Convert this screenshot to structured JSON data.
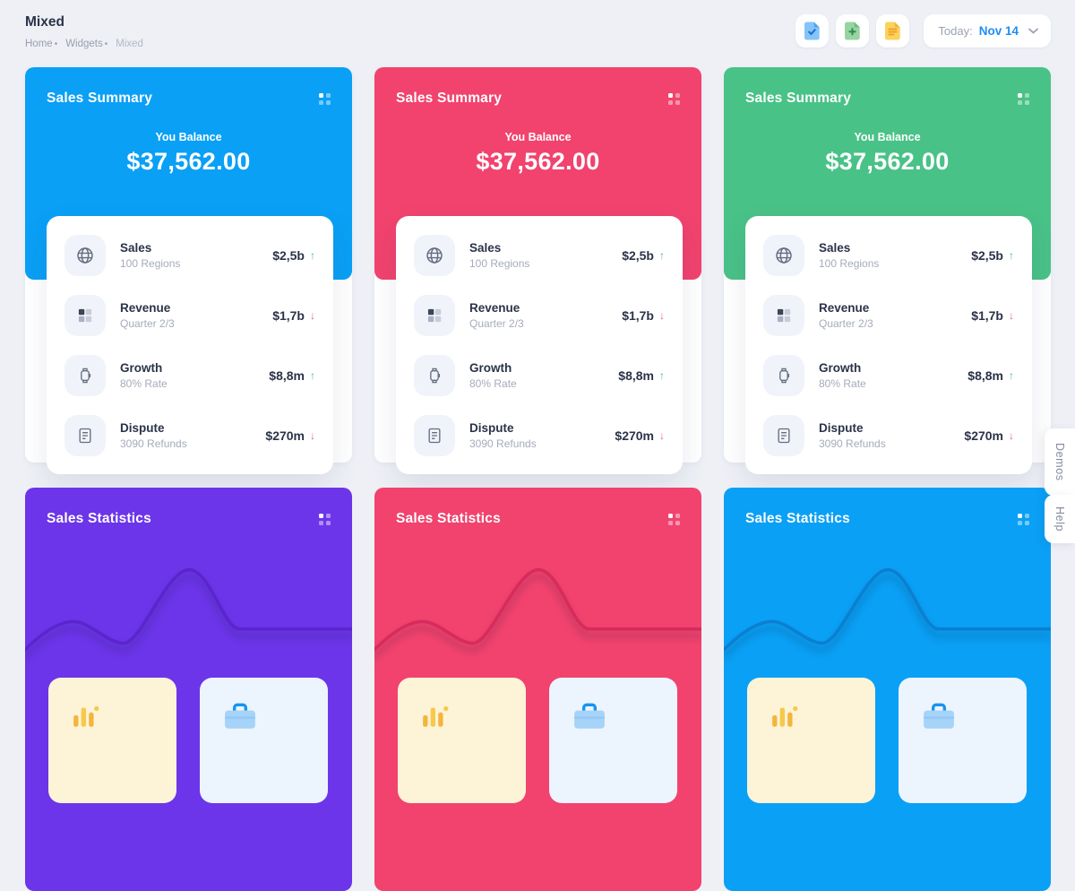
{
  "page": {
    "title": "Mixed",
    "breadcrumb": [
      "Home",
      "Widgets",
      "Mixed"
    ],
    "background": "#eef0f6"
  },
  "toolbar": {
    "icons": [
      {
        "name": "file-check-icon",
        "body": "#85c4f8",
        "fold": "#54a6ea",
        "glyph": "#1b72cf"
      },
      {
        "name": "file-plus-icon",
        "body": "#98d3a3",
        "fold": "#6fb97e",
        "glyph": "#2f8f4e"
      },
      {
        "name": "file-lines-icon",
        "body": "#fbd35b",
        "fold": "#eab83f",
        "glyph": "#ef9f2e"
      }
    ],
    "date": {
      "label": "Today:",
      "value": "Nov 14"
    }
  },
  "summary": {
    "cards": [
      {
        "title": "Sales Summary",
        "accent": "#0aa0f5",
        "balance_label": "You Balance",
        "balance": "$37,562.00"
      },
      {
        "title": "Sales Summary",
        "accent": "#f1436e",
        "balance_label": "You Balance",
        "balance": "$37,562.00"
      },
      {
        "title": "Sales Summary",
        "accent": "#49c287",
        "balance_label": "You Balance",
        "balance": "$37,562.00"
      }
    ],
    "rows": [
      {
        "icon": "globe-icon",
        "title": "Sales",
        "subtitle": "100 Regions",
        "value": "$2,5b",
        "trend": "up"
      },
      {
        "icon": "grid-icon",
        "title": "Revenue",
        "subtitle": "Quarter 2/3",
        "value": "$1,7b",
        "trend": "down"
      },
      {
        "icon": "watch-icon",
        "title": "Growth",
        "subtitle": "80% Rate",
        "value": "$8,8m",
        "trend": "up"
      },
      {
        "icon": "document-icon",
        "title": "Dispute",
        "subtitle": "3090 Refunds",
        "value": "$270m",
        "trend": "down"
      }
    ],
    "trend_colors": {
      "up": "#4bbd7a",
      "down": "#ef5e7e"
    }
  },
  "statistics": {
    "cards": [
      {
        "title": "Sales Statistics",
        "accent": "#6c35e9",
        "wave": "#5a25cc"
      },
      {
        "title": "Sales Statistics",
        "accent": "#f1436e",
        "wave": "#d62b5b"
      },
      {
        "title": "Sales Statistics",
        "accent": "#0aa0f5",
        "wave": "#0b7fd0"
      }
    ],
    "boxes": [
      {
        "icon": "bar-chart-icon",
        "bg": "#fdf3d7"
      },
      {
        "icon": "briefcase-icon",
        "bg": "#ecf4fd"
      }
    ]
  },
  "side_tabs": [
    {
      "label": "Demos"
    },
    {
      "label": "Help"
    }
  ]
}
